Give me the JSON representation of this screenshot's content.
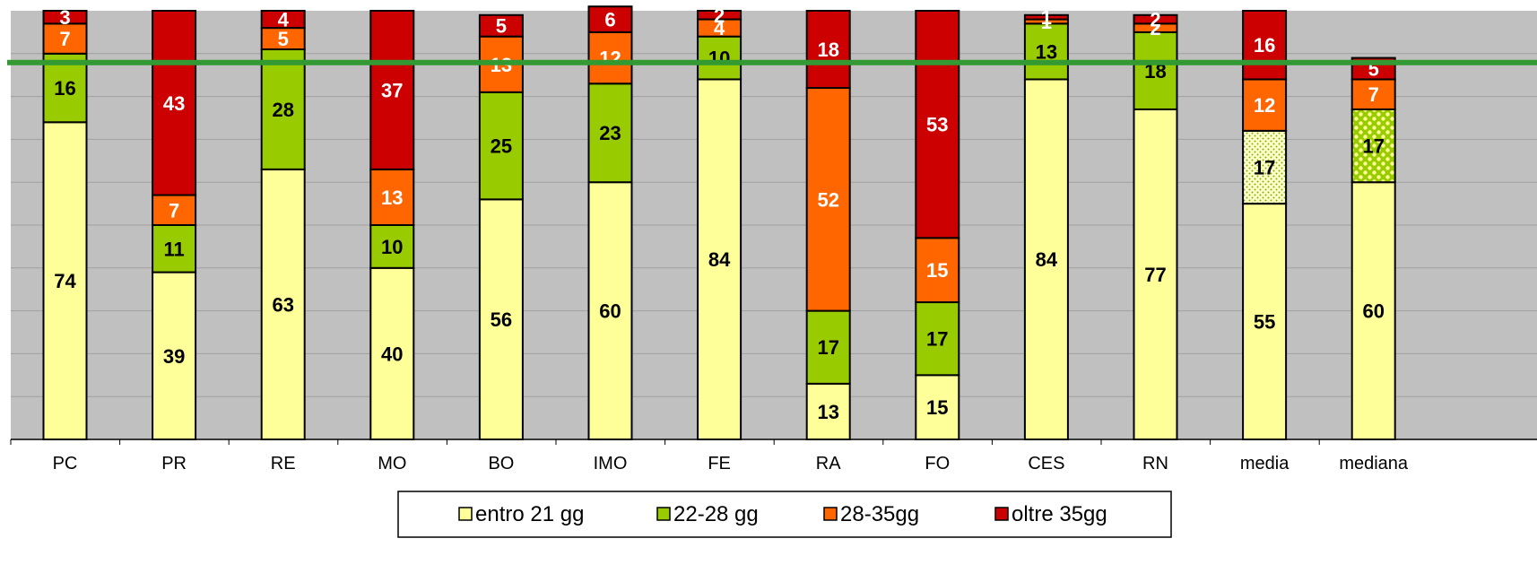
{
  "chart_data": {
    "type": "bar",
    "stacked": true,
    "percent_scale": true,
    "categories": [
      "PC",
      "PR",
      "RE",
      "MO",
      "BO",
      "IMO",
      "FE",
      "RA",
      "FO",
      "CES",
      "RN",
      "media",
      "mediana"
    ],
    "series": [
      {
        "name": "entro 21 gg",
        "color": "#ffff99",
        "values": [
          74,
          39,
          63,
          40,
          56,
          60,
          84,
          13,
          15,
          84,
          77,
          55,
          60
        ]
      },
      {
        "name": "22-28 gg",
        "color": "#99cc00",
        "values": [
          16,
          11,
          28,
          10,
          25,
          23,
          10,
          17,
          17,
          13,
          18,
          17,
          17
        ]
      },
      {
        "name": "28-35gg",
        "color": "#ff6600",
        "values": [
          7,
          7,
          5,
          13,
          13,
          12,
          4,
          52,
          15,
          1,
          2,
          12,
          7
        ]
      },
      {
        "name": "oltre 35gg",
        "color": "#cc0000",
        "values": [
          3,
          43,
          4,
          37,
          5,
          6,
          2,
          18,
          53,
          1,
          2,
          16,
          5
        ]
      }
    ],
    "reference_line": {
      "y": 90,
      "color": "#339933"
    },
    "ylim": [
      0,
      100
    ],
    "grid": true,
    "plot_background": "#c0c0c0",
    "legend_position": "bottom-center",
    "highlight_patterns": {
      "media": {
        "series": "22-28 gg",
        "pattern": "dotted"
      },
      "mediana": {
        "series": "22-28 gg",
        "pattern": "checker"
      }
    },
    "title": "",
    "xlabel": "",
    "ylabel": ""
  }
}
